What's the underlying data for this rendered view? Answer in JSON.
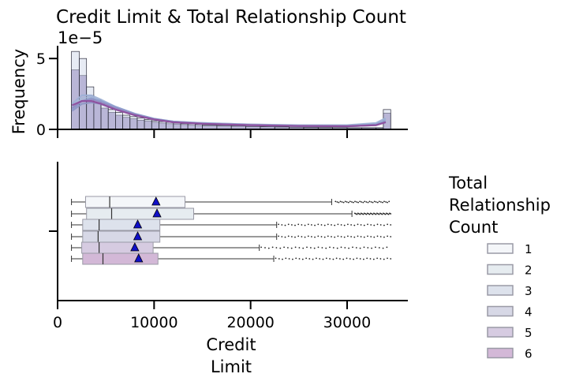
{
  "chart_data": {
    "title": "Credit Limit & Total Relationship Count",
    "xlabel_lines": [
      "Credit",
      "Limit"
    ],
    "x_ticks": [
      0,
      10000,
      20000,
      30000
    ],
    "x_range": [
      0,
      36000
    ],
    "hist": {
      "type": "histogram",
      "ylabel": "Frequency",
      "offset_label": "1e−5",
      "y_ticks": [
        0,
        5
      ],
      "y_tick_labels": [
        "0",
        "5"
      ],
      "y_range": [
        0,
        5.9
      ],
      "bin_edges": [
        1438,
        2250,
        3000,
        3750,
        4500,
        5250,
        6000,
        6750,
        7500,
        8250,
        9000,
        9750,
        10500,
        11250,
        12000,
        12750,
        13500,
        14250,
        15000,
        16500,
        18000,
        19500,
        21000,
        22500,
        24000,
        25500,
        27000,
        28500,
        30000,
        31500,
        33000,
        33750,
        34516
      ],
      "bar_heights_front": [
        5.5,
        5.0,
        3.0,
        2.1,
        1.8,
        1.4,
        1.2,
        1.0,
        0.9,
        0.8,
        0.7,
        0.6,
        0.55,
        0.5,
        0.45,
        0.4,
        0.38,
        0.35,
        0.3,
        0.28,
        0.25,
        0.22,
        0.2,
        0.18,
        0.16,
        0.15,
        0.14,
        0.13,
        0.12,
        0.12,
        0.12,
        1.4
      ],
      "bar_heights_back": [
        4.2,
        3.8,
        2.4,
        1.9,
        1.5,
        1.2,
        1.0,
        0.85,
        0.75,
        0.65,
        0.6,
        0.5,
        0.45,
        0.4,
        0.38,
        0.34,
        0.3,
        0.28,
        0.26,
        0.24,
        0.22,
        0.2,
        0.18,
        0.16,
        0.14,
        0.13,
        0.12,
        0.11,
        0.1,
        0.1,
        0.1,
        1.15
      ],
      "kde_x": [
        1500,
        2500,
        3500,
        4500,
        6000,
        8000,
        10000,
        12000,
        15000,
        20000,
        25000,
        30000,
        33000,
        34000
      ],
      "kde_series": [
        {
          "group": "1",
          "values": [
            1.6,
            2.2,
            2.3,
            2.0,
            1.5,
            1.0,
            0.7,
            0.55,
            0.45,
            0.35,
            0.3,
            0.3,
            0.45,
            0.8
          ]
        },
        {
          "group": "2",
          "values": [
            1.8,
            2.4,
            2.4,
            2.1,
            1.6,
            1.1,
            0.75,
            0.55,
            0.45,
            0.35,
            0.28,
            0.28,
            0.42,
            0.75
          ]
        },
        {
          "group": "3",
          "values": [
            1.4,
            2.0,
            2.2,
            2.0,
            1.6,
            1.1,
            0.75,
            0.55,
            0.42,
            0.3,
            0.25,
            0.24,
            0.35,
            0.6
          ]
        },
        {
          "group": "4",
          "values": [
            1.3,
            1.8,
            1.9,
            1.8,
            1.4,
            1.0,
            0.7,
            0.5,
            0.4,
            0.3,
            0.24,
            0.22,
            0.3,
            0.55
          ]
        },
        {
          "group": "5",
          "values": [
            1.5,
            2.0,
            2.1,
            1.9,
            1.5,
            1.05,
            0.7,
            0.52,
            0.4,
            0.3,
            0.24,
            0.22,
            0.3,
            0.5
          ]
        },
        {
          "group": "6",
          "values": [
            1.7,
            2.0,
            2.0,
            1.8,
            1.4,
            1.0,
            0.7,
            0.5,
            0.4,
            0.3,
            0.24,
            0.22,
            0.3,
            0.5
          ]
        }
      ]
    },
    "box": {
      "type": "boxplot",
      "orientation": "horizontal",
      "groups": [
        {
          "name": "1",
          "whisker_low": 1438,
          "q1": 2900,
          "median": 5400,
          "q3": 13200,
          "whisker_high": 28400,
          "mean": 10200,
          "outlier_start": 28800
        },
        {
          "name": "2",
          "whisker_low": 1438,
          "q1": 3000,
          "median": 5600,
          "q3": 14100,
          "whisker_high": 30500,
          "mean": 10300,
          "outlier_start": 30800
        },
        {
          "name": "3",
          "whisker_low": 1438,
          "q1": 2600,
          "median": 4300,
          "q3": 10600,
          "whisker_high": 22700,
          "mean": 8300,
          "outlier_start": 22900
        },
        {
          "name": "4",
          "whisker_low": 1438,
          "q1": 2600,
          "median": 4200,
          "q3": 10600,
          "whisker_high": 22700,
          "mean": 8300,
          "outlier_start": 22900
        },
        {
          "name": "5",
          "whisker_low": 1438,
          "q1": 2500,
          "median": 4300,
          "q3": 9900,
          "whisker_high": 20900,
          "mean": 8000,
          "outlier_start": 21100
        },
        {
          "name": "6",
          "whisker_low": 1438,
          "q1": 2600,
          "median": 4700,
          "q3": 10400,
          "whisker_high": 22400,
          "mean": 8400,
          "outlier_start": 22600
        }
      ],
      "outlier_max": 34516
    },
    "legend": {
      "title_lines": [
        "Total",
        "Relationship",
        "Count"
      ],
      "placement": "right",
      "entries": [
        "1",
        "2",
        "3",
        "4",
        "5",
        "6"
      ]
    },
    "colors": {
      "palette": [
        "#f4f6f9",
        "#e6ecf0",
        "#dde2ec",
        "#d7d8e6",
        "#d6cbe1",
        "#d3b8d7"
      ],
      "kde_colors": [
        "#a6b9d8",
        "#9db0d6",
        "#8e9ecd",
        "#8d96c4",
        "#9189c0",
        "#8e4a9c"
      ],
      "mean_marker": "#1010c8",
      "edge": "#333333"
    }
  }
}
